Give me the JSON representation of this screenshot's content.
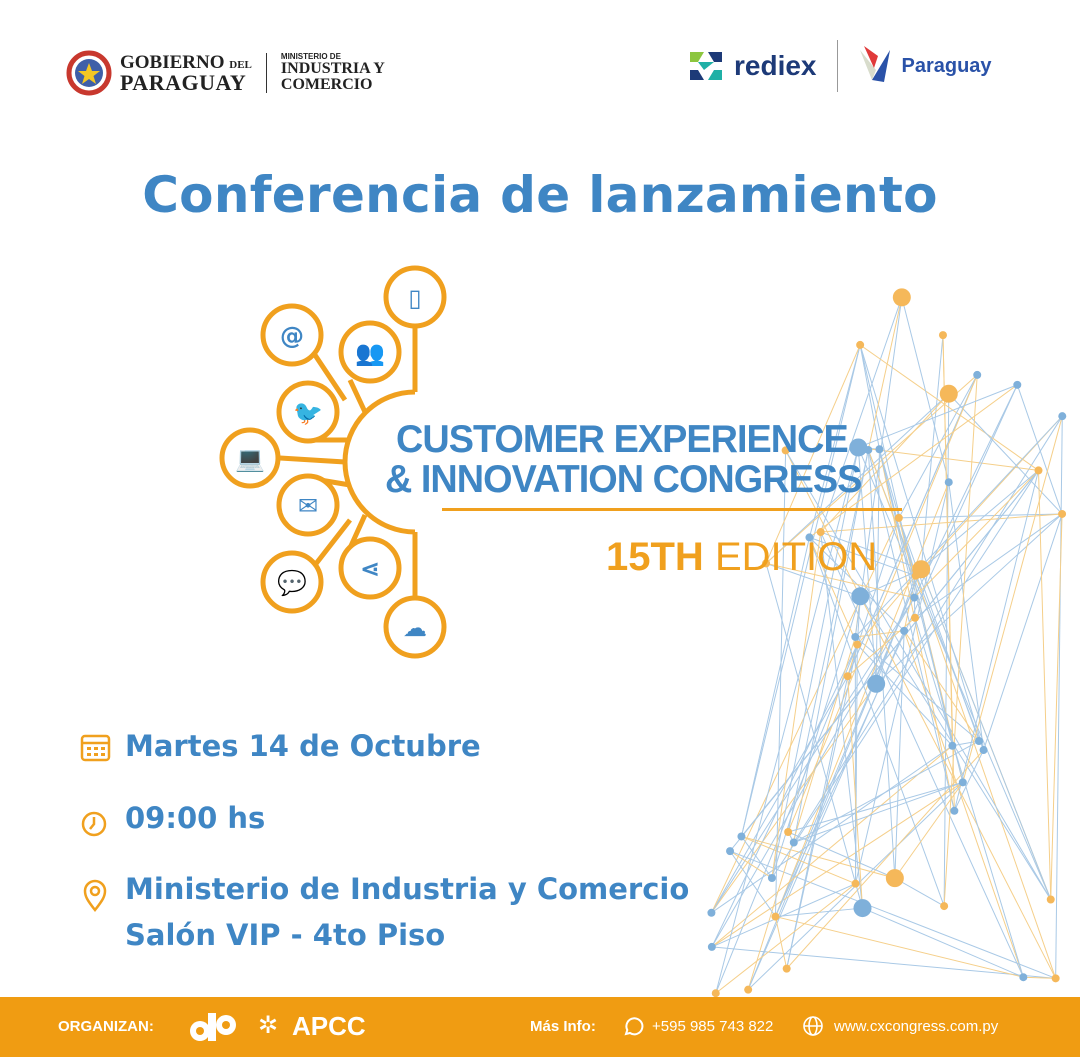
{
  "header": {
    "gobierno": {
      "line1": "GOBIERNO",
      "del": "DEL",
      "line2": "PARAGUAY"
    },
    "ministerio": {
      "small": "MINISTERIO DE",
      "line1": "INDUSTRIA Y",
      "line2": "COMERCIO"
    },
    "rediex": "rediex",
    "paraguay_brand": "Paraguay"
  },
  "title": "Conferencia de lanzamiento",
  "congress": {
    "line1": "CUSTOMER EXPERIENCE",
    "line2": "& INNOVATION CONGRESS",
    "edition_num": "15TH",
    "edition_word": "EDITION",
    "icons": [
      "phone-icon",
      "at-icon",
      "people-icon",
      "twitter-icon",
      "laptop-icon",
      "mail-icon",
      "messenger-icon",
      "share-icon",
      "download-cloud-icon"
    ]
  },
  "event": {
    "date": "Martes 14 de Octubre",
    "time": "09:00 hs",
    "place_line1": "Ministerio de Industria y Comercio",
    "place_line2": "Salón VIP - 4to Piso"
  },
  "footer": {
    "organizan": "ORGANIZAN:",
    "org1": "cfp",
    "org2": "APCC",
    "mas_info": "Más Info:",
    "phone": "+595 985 743 822",
    "website": "www.cxcongress.com.py"
  },
  "colors": {
    "blue": "#3f86c4",
    "orange": "#f0a01e",
    "footer": "#f09c12"
  }
}
